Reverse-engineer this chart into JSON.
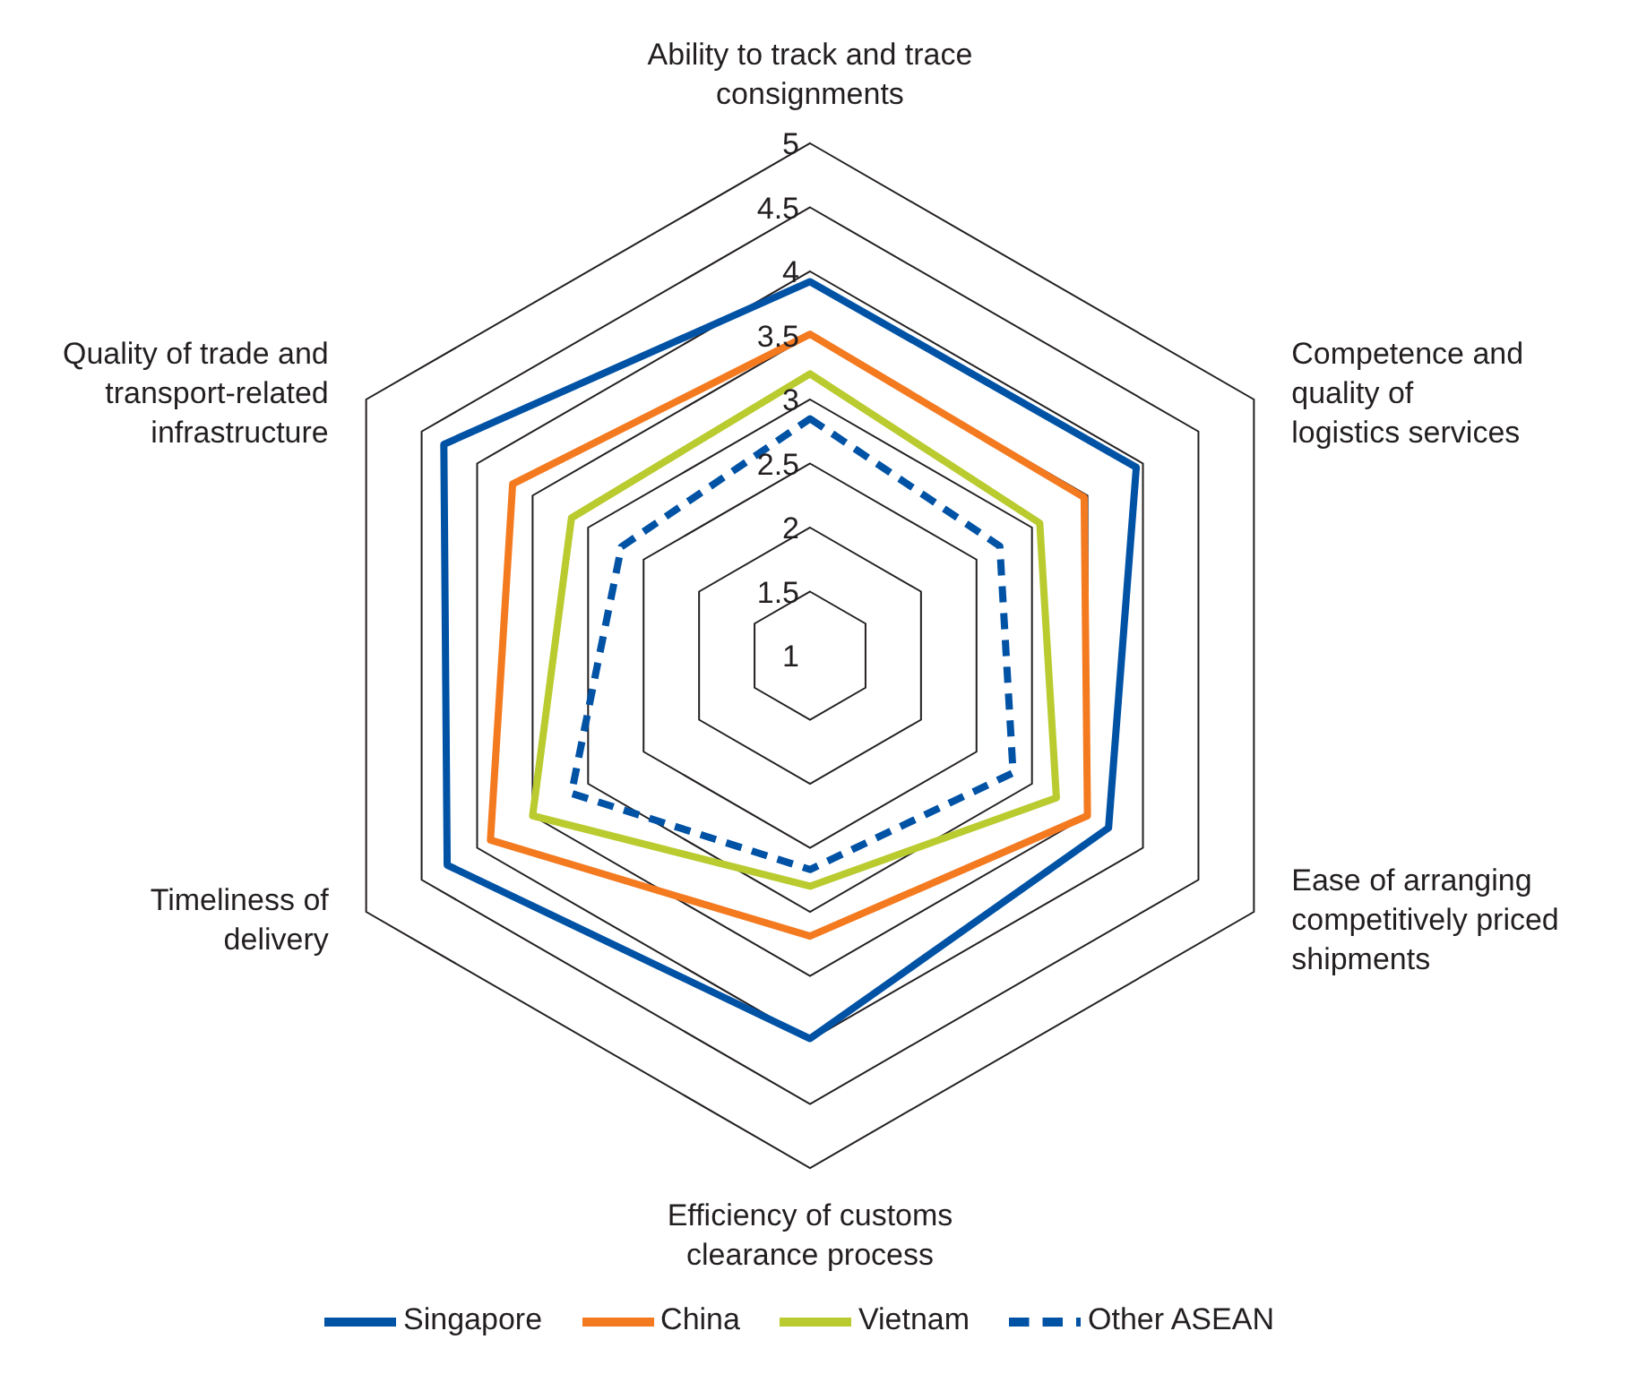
{
  "chart_data": {
    "type": "radar",
    "categories": [
      "Ability to track and trace consignments",
      "Competence and quality of logistics services",
      "Ease of arranging competitively priced shipments",
      "Efficiency of customs clearance process",
      "Timeliness of delivery",
      "Quality of trade and transport-related infrastructure"
    ],
    "series": [
      {
        "name": "Singapore",
        "color": "#0052a5",
        "values": [
          3.92,
          3.94,
          3.69,
          3.99,
          4.27,
          4.3
        ],
        "line_style": "solid"
      },
      {
        "name": "China",
        "color": "#f47a20",
        "values": [
          3.51,
          3.47,
          3.5,
          3.19,
          3.88,
          3.68
        ],
        "line_style": "solid"
      },
      {
        "name": "Vietnam",
        "color": "#b9cb2e",
        "values": [
          3.2,
          3.07,
          3.22,
          2.8,
          3.5,
          3.15
        ],
        "line_style": "solid"
      },
      {
        "name": "Other ASEAN",
        "color": "#0052a5",
        "values": [
          2.85,
          2.71,
          2.83,
          2.67,
          3.15,
          2.7
        ],
        "line_style": "dashed"
      }
    ],
    "ylim": [
      1,
      5
    ],
    "yticks": [
      1,
      1.5,
      2,
      2.5,
      3,
      3.5,
      4,
      4.5,
      5
    ],
    "grid": true,
    "legend": "bottom",
    "marker": "none"
  }
}
